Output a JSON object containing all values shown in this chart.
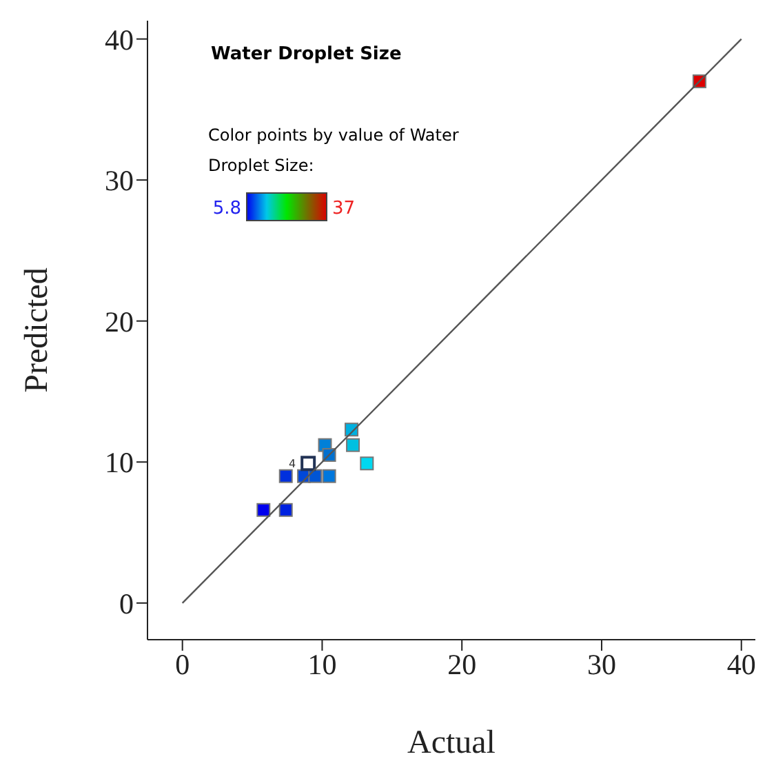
{
  "chart_data": {
    "type": "scatter",
    "title": "Water Droplet Size",
    "clabel": "Color points by value of Water Droplet Size:",
    "xlabel": "Actual",
    "ylabel": "Predicted",
    "xlim": [
      -2.5,
      41
    ],
    "ylim": [
      -2.6,
      41.3
    ],
    "xticks": [
      0,
      10,
      20,
      30,
      40
    ],
    "yticks": [
      0,
      10,
      20,
      30,
      40
    ],
    "grid": false,
    "legend": false,
    "marker": "square",
    "annotations": [
      "5.8",
      "37",
      {
        "text": "4",
        "x": 9,
        "y": 9.9
      }
    ],
    "series": [
      {
        "type": "scatter",
        "x": [
          5.8,
          7.4,
          7.4,
          8.7,
          9.5,
          10.5,
          9.0,
          10.2,
          10.5,
          12.1,
          12.2,
          13.2,
          37
        ],
        "values": [
          6.6,
          6.6,
          9.0,
          9.0,
          9.0,
          9.0,
          9.9,
          11.2,
          10.5,
          12.3,
          11.2,
          9.9,
          37
        ],
        "colors": [
          "#0000ee",
          "#0022e0",
          "#0030dd",
          "#0048d8",
          "#0055d5",
          "#0077dd",
          "#ffffff",
          "#0080d8",
          "#0070d0",
          "#00b0e0",
          "#00c0e0",
          "#00d8f0",
          "#dd0000"
        ]
      },
      {
        "type": "line",
        "marker": "none",
        "color": "#555555",
        "x": [
          0,
          40
        ],
        "values": [
          0,
          40
        ]
      }
    ]
  }
}
